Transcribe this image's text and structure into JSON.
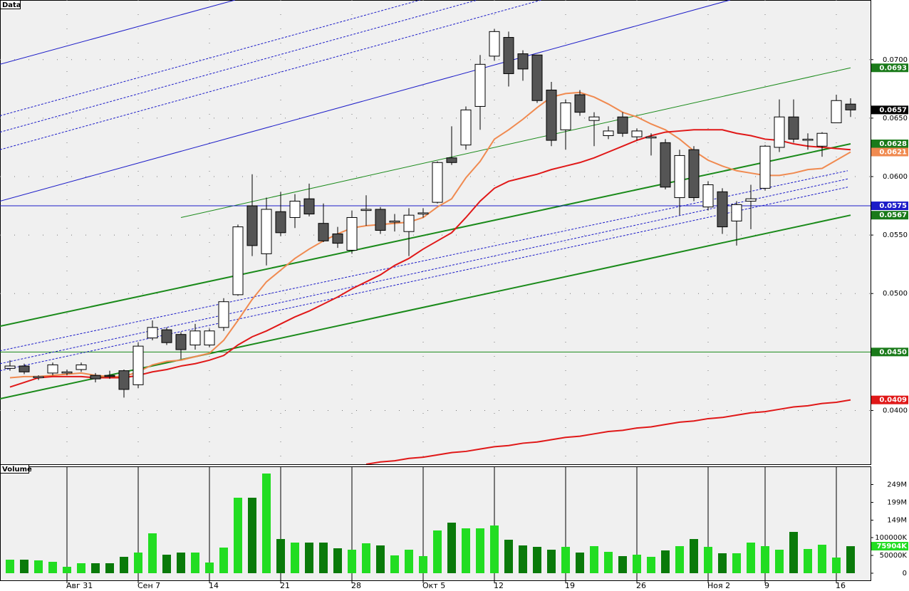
{
  "chart_data": [
    {
      "type": "candlestick",
      "title": "Data",
      "categories": [
        null,
        null,
        null,
        null,
        "Авг 31",
        null,
        null,
        null,
        null,
        "Сен 7",
        null,
        null,
        null,
        null,
        "14",
        null,
        null,
        null,
        null,
        "21",
        null,
        null,
        null,
        null,
        "28",
        null,
        null,
        null,
        null,
        "Окт 5",
        null,
        null,
        null,
        null,
        "12",
        null,
        null,
        null,
        null,
        "19",
        null,
        null,
        null,
        null,
        "26",
        null,
        null,
        null,
        null,
        "Ноя 2",
        null,
        null,
        null,
        "9",
        null,
        null,
        null,
        null,
        "16",
        null
      ],
      "open": [
        0.0436,
        0.0438,
        0.0428,
        0.0432,
        0.0432,
        0.0435,
        0.043,
        0.043,
        0.0434,
        0.0422,
        0.0462,
        0.0469,
        0.0465,
        0.0456,
        0.0456,
        0.0471,
        0.0499,
        0.0575,
        0.0534,
        0.057,
        0.0565,
        0.0581,
        0.056,
        0.0551,
        0.0537,
        0.0571,
        0.0572,
        0.0561,
        0.0553,
        0.0568,
        0.0578,
        0.0616,
        0.0627,
        0.066,
        0.0703,
        0.0719,
        0.0705,
        0.0704,
        0.0674,
        0.064,
        0.067,
        0.0648,
        0.0635,
        0.0651,
        0.0634,
        0.0633,
        0.0629,
        0.0582,
        0.0623,
        0.0574,
        0.0587,
        0.0562,
        0.0579,
        0.059,
        0.0625,
        0.0651,
        0.0631,
        0.0626,
        0.0646,
        0.0662
      ],
      "high": [
        0.0443,
        0.044,
        0.043,
        0.0441,
        0.0435,
        0.0441,
        0.0432,
        0.0434,
        0.0435,
        0.0458,
        0.0477,
        0.0471,
        0.0467,
        0.0474,
        0.047,
        0.0496,
        0.0559,
        0.0602,
        0.0582,
        0.0587,
        0.0585,
        0.0594,
        0.0577,
        0.0557,
        0.0571,
        0.0584,
        0.0574,
        0.0568,
        0.0573,
        0.0573,
        0.0613,
        0.0643,
        0.066,
        0.0704,
        0.0726,
        0.0724,
        0.0708,
        0.0704,
        0.0681,
        0.0666,
        0.0674,
        0.0655,
        0.0643,
        0.0655,
        0.0641,
        0.0637,
        0.0632,
        0.0623,
        0.0626,
        0.0596,
        0.059,
        0.0579,
        0.0593,
        0.0627,
        0.0666,
        0.0666,
        0.0637,
        0.0638,
        0.067,
        0.0667
      ],
      "low": [
        0.0434,
        0.0431,
        0.0426,
        0.043,
        0.043,
        0.0433,
        0.0424,
        0.0427,
        0.0411,
        0.0419,
        0.046,
        0.0456,
        0.0444,
        0.0452,
        0.0454,
        0.0468,
        0.0498,
        0.0532,
        0.0524,
        0.0549,
        0.0556,
        0.0566,
        0.0544,
        0.0539,
        0.0534,
        0.0558,
        0.0551,
        0.0553,
        0.0532,
        0.0565,
        0.0577,
        0.061,
        0.0623,
        0.064,
        0.0699,
        0.0677,
        0.0682,
        0.0663,
        0.0626,
        0.0623,
        0.0652,
        0.0626,
        0.0632,
        0.0634,
        0.0631,
        0.0618,
        0.0589,
        0.0567,
        0.0579,
        0.0571,
        0.0551,
        0.0541,
        0.0555,
        0.0588,
        0.0621,
        0.0629,
        0.0623,
        0.0617,
        0.0646,
        0.0651
      ],
      "close": [
        0.0438,
        0.0433,
        0.0429,
        0.0439,
        0.0433,
        0.0439,
        0.0427,
        0.0429,
        0.0418,
        0.0455,
        0.0471,
        0.0458,
        0.0452,
        0.0468,
        0.0468,
        0.0493,
        0.0557,
        0.0541,
        0.0572,
        0.0552,
        0.0579,
        0.0568,
        0.0545,
        0.0543,
        0.0565,
        0.0572,
        0.0554,
        0.0562,
        0.0567,
        0.0569,
        0.0612,
        0.0612,
        0.0657,
        0.0696,
        0.0724,
        0.0688,
        0.0692,
        0.0665,
        0.0631,
        0.0663,
        0.0655,
        0.0651,
        0.0639,
        0.0637,
        0.0639,
        0.0634,
        0.0591,
        0.0618,
        0.0582,
        0.0593,
        0.0557,
        0.0576,
        0.0581,
        0.0626,
        0.0651,
        0.0632,
        0.0632,
        0.0637,
        0.0665,
        0.0657
      ],
      "up_color": "#ffffff",
      "down_color": "#555555",
      "ylim": [
        0.0354,
        0.0751
      ],
      "yticks": [
        {
          "value": 0.04,
          "label": "0.0400"
        },
        {
          "value": 0.05,
          "label": "0.0500"
        },
        {
          "value": 0.055,
          "label": "0.0550"
        },
        {
          "value": 0.06,
          "label": "0.0600"
        },
        {
          "value": 0.065,
          "label": "0.0650"
        },
        {
          "value": 0.07,
          "label": "0.0700"
        }
      ],
      "grid": true,
      "series": [
        {
          "color": "#f08a50",
          "values": [
            0.0428,
            0.0429,
            0.0429,
            0.043,
            0.0431,
            0.0432,
            0.043,
            0.0429,
            0.0429,
            0.0433,
            0.0439,
            0.0442,
            0.0443,
            0.0446,
            0.0449,
            0.046,
            0.0477,
            0.0495,
            0.051,
            0.052,
            0.053,
            0.0538,
            0.0545,
            0.0551,
            0.0556,
            0.0558,
            0.0559,
            0.056,
            0.0561,
            0.0565,
            0.0574,
            0.0581,
            0.0599,
            0.0613,
            0.0632,
            0.064,
            0.0649,
            0.0659,
            0.0668,
            0.0671,
            0.0672,
            0.0668,
            0.0662,
            0.0655,
            0.0651,
            0.0645,
            0.064,
            0.0632,
            0.0622,
            0.0614,
            0.0609,
            0.0605,
            0.0603,
            0.0601,
            0.0601,
            0.0603,
            0.0606,
            0.0607,
            0.0614,
            0.0621
          ]
        },
        {
          "color": "#e01818",
          "values": [
            0.042,
            0.0424,
            0.0428,
            0.0429,
            0.0429,
            0.0429,
            0.0428,
            0.0428,
            0.0428,
            0.043,
            0.0433,
            0.0435,
            0.0438,
            0.044,
            0.0443,
            0.0447,
            0.0456,
            0.0463,
            0.0468,
            0.0474,
            0.048,
            0.0485,
            0.0491,
            0.0497,
            0.0504,
            0.051,
            0.0516,
            0.0524,
            0.053,
            0.0538,
            0.0545,
            0.0552,
            0.0565,
            0.0579,
            0.059,
            0.0596,
            0.0599,
            0.0602,
            0.0606,
            0.0609,
            0.0612,
            0.0616,
            0.0621,
            0.0626,
            0.0631,
            0.0635,
            0.0638,
            0.0639,
            0.064,
            0.064,
            0.064,
            0.0637,
            0.0635,
            0.0632,
            0.0631,
            0.0628,
            0.0626,
            0.0625,
            0.0624,
            0.0623
          ]
        },
        {
          "color": "#e01818",
          "values": [
            null,
            null,
            null,
            null,
            null,
            null,
            null,
            null,
            null,
            null,
            null,
            null,
            null,
            null,
            null,
            null,
            null,
            null,
            null,
            null,
            null,
            null,
            null,
            null,
            null,
            0.0354,
            0.0356,
            0.0357,
            0.0359,
            0.036,
            0.0362,
            0.0364,
            0.0365,
            0.0367,
            0.0369,
            0.037,
            0.0372,
            0.0373,
            0.0375,
            0.0377,
            0.0378,
            0.038,
            0.0382,
            0.0383,
            0.0385,
            0.0386,
            0.0388,
            0.039,
            0.0391,
            0.0393,
            0.0394,
            0.0396,
            0.0398,
            0.0399,
            0.0401,
            0.0403,
            0.0404,
            0.0406,
            0.0407,
            0.0409
          ]
        }
      ],
      "trendlines": [
        {
          "color": "#1a8a1a",
          "width": 2,
          "dash": false,
          "x": [
            -0.7,
            59
          ],
          "y": [
            0.0472,
            0.0628
          ]
        },
        {
          "color": "#1a8a1a",
          "width": 2,
          "dash": false,
          "x": [
            -0.7,
            59
          ],
          "y": [
            0.041,
            0.0567
          ]
        },
        {
          "color": "#1a8a1a",
          "width": 1,
          "dash": false,
          "x": [
            12,
            59
          ],
          "y": [
            0.0565,
            0.0693
          ]
        },
        {
          "color": "#1c1cc8",
          "width": 1,
          "dash": false,
          "x": [
            -0.7,
            60.4
          ],
          "y": [
            0.0575,
            0.0575
          ]
        },
        {
          "color": "#1a8a1a",
          "width": 1,
          "dash": false,
          "x": [
            -0.7,
            60.4
          ],
          "y": [
            0.045,
            0.045
          ]
        },
        {
          "color": "#1c1cc8",
          "width": 1,
          "dash": false,
          "x": [
            -0.7,
            15.8
          ],
          "y": [
            0.0696,
            0.0751
          ]
        },
        {
          "color": "#1c1cc8",
          "width": 1,
          "dash": false,
          "x": [
            -0.7,
            50.55
          ],
          "y": [
            0.0579,
            0.0751
          ]
        },
        {
          "color": "#1c1cc8",
          "width": 1,
          "dash": true,
          "x": [
            -0.7,
            28.8
          ],
          "y": [
            0.0652,
            0.0751
          ]
        },
        {
          "color": "#1c1cc8",
          "width": 1,
          "dash": true,
          "x": [
            -0.7,
            32.8
          ],
          "y": [
            0.0638,
            0.0751
          ]
        },
        {
          "color": "#1c1cc8",
          "width": 1,
          "dash": true,
          "x": [
            -0.7,
            37.3
          ],
          "y": [
            0.0623,
            0.0751
          ]
        },
        {
          "color": "#1c1cc8",
          "width": 1,
          "dash": true,
          "x": [
            -0.7,
            58.8
          ],
          "y": [
            0.0451,
            0.0605
          ]
        },
        {
          "color": "#1c1cc8",
          "width": 1,
          "dash": true,
          "x": [
            -0.7,
            58.8
          ],
          "y": [
            0.044,
            0.0598
          ]
        },
        {
          "color": "#1c1cc8",
          "width": 1,
          "dash": true,
          "x": [
            -0.7,
            58.8
          ],
          "y": [
            0.0434,
            0.0591
          ]
        }
      ],
      "markers": [
        {
          "value": 0.0693,
          "label": "0.0693",
          "color": "#1a7a1a"
        },
        {
          "value": 0.0657,
          "label": "0.0657",
          "color": "#000000"
        },
        {
          "value": 0.0628,
          "label": "0.0628",
          "color": "#1a7a1a"
        },
        {
          "value": 0.0621,
          "label": "0.0621",
          "color": "#f08a50"
        },
        {
          "value": 0.0575,
          "label": "0.0575",
          "color": "#1c1cc8"
        },
        {
          "value": 0.0567,
          "label": "0.0567",
          "color": "#1a7a1a"
        },
        {
          "value": 0.045,
          "label": "0.0450",
          "color": "#1a7a1a"
        },
        {
          "value": 0.0409,
          "label": "0.0409",
          "color": "#e01818"
        }
      ]
    },
    {
      "type": "bar",
      "title": "Volume",
      "values": [
        38000000,
        38000000,
        36000000,
        32000000,
        18000000,
        28000000,
        28000000,
        28000000,
        46000000,
        58000000,
        112000000,
        52000000,
        58000000,
        58000000,
        30000000,
        72000000,
        212000000,
        212000000,
        280000000,
        96000000,
        86000000,
        86000000,
        86000000,
        70000000,
        66000000,
        84000000,
        78000000,
        50000000,
        66000000,
        48000000,
        120000000,
        142000000,
        126000000,
        126000000,
        134000000,
        94000000,
        78000000,
        74000000,
        66000000,
        74000000,
        58000000,
        76000000,
        60000000,
        48000000,
        52000000,
        46000000,
        64000000,
        76000000,
        96000000,
        74000000,
        56000000,
        56000000,
        86000000,
        76000000,
        66000000,
        116000000,
        68000000,
        80000000,
        44000000,
        75904000
      ],
      "up_color": "#22dd22",
      "down_color": "#0a7a0a",
      "ylim": [
        -20000000,
        300000000
      ],
      "yticks": [
        0,
        {
          "value": 50000000,
          "label": "50000K"
        },
        {
          "value": 100000000,
          "label": "100000K"
        },
        {
          "value": 149000000,
          "label": "149M"
        },
        {
          "value": 199000000,
          "label": "199M"
        },
        {
          "value": 249000000,
          "label": "249M"
        }
      ],
      "markers": [
        {
          "value": 75904000,
          "label": "75904K",
          "color": "#22dd22"
        }
      ]
    }
  ]
}
